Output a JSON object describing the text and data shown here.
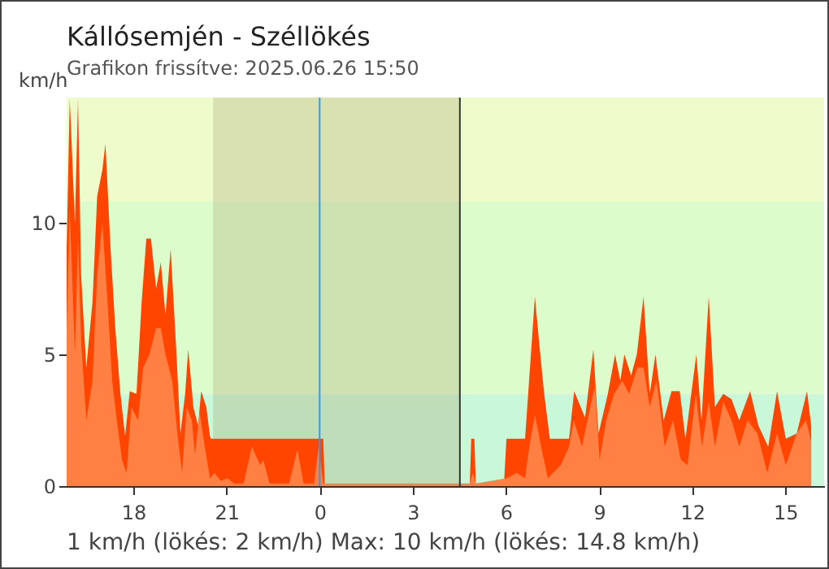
{
  "chart_data": {
    "type": "area",
    "title": "Kállósemjén - Széllökés",
    "subtitle": "Grafikon frissítve: 2025.06.26 15:50",
    "ylabel": "km/h",
    "annotations": [
      "1 km/h  (lökés: 2 km/h)  Max: 10 km/h (lökés: 14.8 km/h)"
    ],
    "xlim": [
      "2025-06-25T15:51",
      "2025-06-26T16:15"
    ],
    "ylim": [
      0,
      14.75
    ],
    "xticks": [
      {
        "value": "2025-06-25T18:00",
        "label": "18"
      },
      {
        "value": "2025-06-25T21:00",
        "label": "21"
      },
      {
        "value": "2025-06-26T00:00",
        "label": "0"
      },
      {
        "value": "2025-06-26T03:00",
        "label": "3"
      },
      {
        "value": "2025-06-26T06:00",
        "label": "6"
      },
      {
        "value": "2025-06-26T09:00",
        "label": "9"
      },
      {
        "value": "2025-06-26T12:00",
        "label": "12"
      },
      {
        "value": "2025-06-26T15:00",
        "label": "15"
      }
    ],
    "yticks": [
      0,
      5,
      10
    ],
    "bands": [
      {
        "axis": "y",
        "from": 0,
        "to": 3.5,
        "color": "#c8f8d8"
      },
      {
        "axis": "y",
        "from": 3.5,
        "to": 10.8,
        "color": "#ddfccc"
      },
      {
        "axis": "y",
        "from": 10.8,
        "to": 14.75,
        "color": "#eefccc"
      },
      {
        "axis": "x",
        "from": "2025-06-25T20:34",
        "to": "2025-06-26T04:31",
        "color": "#a09060"
      }
    ],
    "ref_lines": [
      {
        "axis": "x",
        "value": "2025-06-26T00:00",
        "color": "#3399ee"
      },
      {
        "axis": "x",
        "value": "2025-06-26T04:31",
        "color": "#333333"
      }
    ],
    "series": [
      {
        "color": "#ff4500",
        "x": [
          "2025-06-25T15:51",
          "2025-06-25T15:57",
          "2025-06-25T16:07",
          "2025-06-25T16:13",
          "2025-06-25T16:19",
          "2025-06-25T16:29",
          "2025-06-25T16:41",
          "2025-06-25T16:50",
          "2025-06-25T17:00",
          "2025-06-25T17:06",
          "2025-06-25T17:16",
          "2025-06-25T17:25",
          "2025-06-25T17:35",
          "2025-06-25T17:44",
          "2025-06-25T17:53",
          "2025-06-25T18:06",
          "2025-06-25T18:16",
          "2025-06-25T18:25",
          "2025-06-25T18:34",
          "2025-06-25T18:44",
          "2025-06-25T18:53",
          "2025-06-25T19:02",
          "2025-06-25T19:12",
          "2025-06-25T19:22",
          "2025-06-25T19:31",
          "2025-06-25T19:40",
          "2025-06-25T19:46",
          "2025-06-25T19:56",
          "2025-06-25T20:05",
          "2025-06-25T20:11",
          "2025-06-25T20:21",
          "2025-06-25T20:28",
          "2025-06-25T20:30",
          "2025-06-26T00:07",
          "2025-06-26T00:10",
          "2025-06-26T04:50",
          "2025-06-26T04:53",
          "2025-06-26T04:59",
          "2025-06-26T05:02",
          "2025-06-26T05:56",
          "2025-06-26T06:01",
          "2025-06-26T06:37",
          "2025-06-26T06:43",
          "2025-06-26T06:56",
          "2025-06-26T07:04",
          "2025-06-26T07:14",
          "2025-06-26T07:25",
          "2025-06-26T08:02",
          "2025-06-26T08:12",
          "2025-06-26T08:33",
          "2025-06-26T08:49",
          "2025-06-26T08:59",
          "2025-06-26T09:17",
          "2025-06-26T09:31",
          "2025-06-26T09:41",
          "2025-06-26T09:49",
          "2025-06-26T10:02",
          "2025-06-26T10:13",
          "2025-06-26T10:26",
          "2025-06-26T10:38",
          "2025-06-26T10:49",
          "2025-06-26T11:05",
          "2025-06-26T11:20",
          "2025-06-26T11:36",
          "2025-06-26T11:47",
          "2025-06-26T12:08",
          "2025-06-26T12:18",
          "2025-06-26T12:32",
          "2025-06-26T12:44",
          "2025-06-26T13:00",
          "2025-06-26T13:16",
          "2025-06-26T13:31",
          "2025-06-26T13:52",
          "2025-06-26T14:08",
          "2025-06-26T14:27",
          "2025-06-26T14:44",
          "2025-06-26T15:01",
          "2025-06-26T15:22",
          "2025-06-26T15:42",
          "2025-06-26T15:50"
        ],
        "values": [
          9,
          14.7,
          10,
          14.7,
          8,
          4.5,
          7,
          11,
          12,
          13,
          9,
          6,
          3.5,
          1.9,
          3.6,
          3.5,
          7,
          9.4,
          9.4,
          7.5,
          8.5,
          6.5,
          9,
          5.5,
          2,
          3.5,
          5.2,
          3,
          2.3,
          3.6,
          3,
          1.9,
          1.8,
          1.8,
          0,
          0,
          1.8,
          1.8,
          0,
          0,
          1.8,
          1.8,
          3.5,
          7.2,
          5.5,
          3.5,
          1.8,
          1.8,
          3.6,
          2.6,
          5.2,
          2,
          3.5,
          5,
          4,
          5,
          4.2,
          5,
          7.2,
          3.5,
          5,
          2.5,
          3.6,
          3.6,
          1.8,
          5,
          2.5,
          7.2,
          3,
          3.5,
          3.3,
          2.5,
          3.6,
          2.3,
          1.5,
          3.6,
          1.8,
          2,
          3.6,
          2.3
        ]
      },
      {
        "color": "#ff8042",
        "x": [
          "2025-06-25T15:51",
          "2025-06-25T15:57",
          "2025-06-25T16:07",
          "2025-06-25T16:13",
          "2025-06-25T16:19",
          "2025-06-25T16:29",
          "2025-06-25T16:41",
          "2025-06-25T16:50",
          "2025-06-25T17:00",
          "2025-06-25T17:10",
          "2025-06-25T17:19",
          "2025-06-25T17:28",
          "2025-06-25T17:38",
          "2025-06-25T17:47",
          "2025-06-25T17:56",
          "2025-06-25T18:09",
          "2025-06-25T18:19",
          "2025-06-25T18:31",
          "2025-06-25T18:44",
          "2025-06-25T18:53",
          "2025-06-25T19:02",
          "2025-06-25T19:15",
          "2025-06-25T19:25",
          "2025-06-25T19:34",
          "2025-06-25T19:43",
          "2025-06-25T19:53",
          "2025-06-25T19:59",
          "2025-06-25T20:08",
          "2025-06-25T20:18",
          "2025-06-25T20:28",
          "2025-06-25T20:37",
          "2025-06-25T20:49",
          "2025-06-25T21:02",
          "2025-06-25T21:14",
          "2025-06-25T21:33",
          "2025-06-25T21:49",
          "2025-06-25T22:05",
          "2025-06-25T22:11",
          "2025-06-25T22:23",
          "2025-06-25T23:01",
          "2025-06-25T23:17",
          "2025-06-25T23:29",
          "2025-06-25T23:49",
          "2025-06-25T23:58",
          "2025-06-26T00:07",
          "2025-06-26T04:50",
          "2025-06-26T04:56",
          "2025-06-26T05:02",
          "2025-06-26T06:02",
          "2025-06-26T06:21",
          "2025-06-26T06:37",
          "2025-06-26T06:46",
          "2025-06-26T06:56",
          "2025-06-26T07:08",
          "2025-06-26T07:21",
          "2025-06-26T07:46",
          "2025-06-26T08:02",
          "2025-06-26T08:11",
          "2025-06-26T08:27",
          "2025-06-26T08:43",
          "2025-06-26T08:52",
          "2025-06-26T09:01",
          "2025-06-26T09:14",
          "2025-06-26T09:29",
          "2025-06-26T09:45",
          "2025-06-26T09:58",
          "2025-06-26T10:14",
          "2025-06-26T10:26",
          "2025-06-26T10:38",
          "2025-06-26T10:51",
          "2025-06-26T11:07",
          "2025-06-26T11:23",
          "2025-06-26T11:38",
          "2025-06-26T11:51",
          "2025-06-26T12:07",
          "2025-06-26T12:19",
          "2025-06-26T12:32",
          "2025-06-26T12:44",
          "2025-06-26T13:00",
          "2025-06-26T13:16",
          "2025-06-26T13:31",
          "2025-06-26T13:47",
          "2025-06-26T14:06",
          "2025-06-26T14:25",
          "2025-06-26T14:44",
          "2025-06-26T15:01",
          "2025-06-26T15:22",
          "2025-06-26T15:40",
          "2025-06-26T15:50"
        ],
        "values": [
          6,
          10.5,
          5,
          9.5,
          5.5,
          2.5,
          4,
          8,
          10,
          7,
          4,
          2.5,
          1,
          0.5,
          3,
          2.5,
          4.5,
          5,
          6,
          6,
          5,
          4,
          2,
          0.5,
          3,
          2.5,
          1.2,
          2.8,
          1.5,
          0.3,
          0.5,
          0.2,
          0.3,
          0.1,
          0.1,
          1.5,
          0.8,
          1,
          0.1,
          0.1,
          1.4,
          0.1,
          0.1,
          1.5,
          0.1,
          0.1,
          0.5,
          0.1,
          0.3,
          0.5,
          0.3,
          1.6,
          2.7,
          1.5,
          0.3,
          0.8,
          1.5,
          2.5,
          1.5,
          3,
          3.8,
          1,
          2.5,
          3.5,
          4,
          3.5,
          4.5,
          4.5,
          3,
          4,
          1.5,
          2.5,
          1,
          0.8,
          3.5,
          1.5,
          3.2,
          1.5,
          3.2,
          2.5,
          1.5,
          2.5,
          2,
          0.5,
          2,
          0.8,
          2,
          2.5,
          1.7
        ]
      }
    ]
  }
}
